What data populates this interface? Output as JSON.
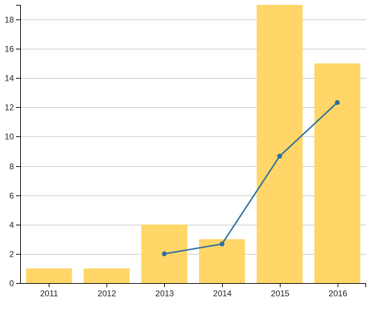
{
  "chart_data": {
    "type": "bar",
    "categories": [
      "2011",
      "2012",
      "2013",
      "2014",
      "2015",
      "2016"
    ],
    "series": [
      {
        "type": "bar",
        "values": [
          1,
          1,
          4,
          3,
          19,
          15
        ],
        "color": "#FFD45F"
      },
      {
        "type": "line",
        "values": [
          null,
          null,
          2,
          2.67,
          8.67,
          12.33
        ],
        "color": "#2A6F9E"
      }
    ],
    "title": "",
    "xlabel": "",
    "ylabel": "",
    "ylim": [
      0,
      19
    ],
    "yticks": [
      0,
      2,
      4,
      6,
      8,
      10,
      12,
      14,
      16,
      18
    ],
    "grid": true,
    "legend": "none",
    "colors": {
      "grid": "#CCCCCC",
      "axis": "#000000",
      "bar": "#FFD45F",
      "line": "#2A6F9E"
    }
  }
}
